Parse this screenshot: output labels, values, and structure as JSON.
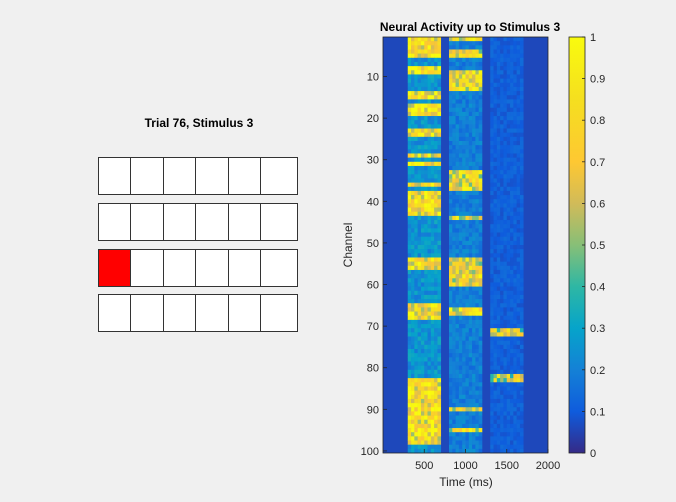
{
  "left_panel": {
    "title": "Trial 76, Stimulus 3",
    "rows": [
      [
        false,
        false,
        false,
        false,
        false,
        false
      ],
      [
        false,
        false,
        false,
        false,
        false,
        false
      ],
      [
        true,
        false,
        false,
        false,
        false,
        false
      ],
      [
        false,
        false,
        false,
        false,
        false,
        false
      ]
    ],
    "active_color": "#ff0000"
  },
  "chart_data": {
    "type": "heatmap",
    "title": "Neural Activity up to Stimulus 3",
    "xlabel": "Time (ms)",
    "ylabel": "Channel",
    "xlim": [
      0,
      2000
    ],
    "ylim": [
      1,
      100
    ],
    "y_reversed": true,
    "xticks": [
      500,
      1000,
      1500,
      2000
    ],
    "yticks": [
      10,
      20,
      30,
      40,
      50,
      60,
      70,
      80,
      90,
      100
    ],
    "colormap": "parula",
    "clim": [
      0,
      1
    ],
    "colorbar_ticks": [
      0,
      0.1,
      0.2,
      0.3,
      0.4,
      0.5,
      0.6,
      0.7,
      0.8,
      0.9,
      1
    ],
    "stimulus_windows_ms": [
      {
        "stimulus": 1,
        "start": 300,
        "end": 700,
        "mean_activity": 0.32
      },
      {
        "stimulus": 2,
        "start": 800,
        "end": 1200,
        "mean_activity": 0.24
      },
      {
        "stimulus": 3,
        "start": 1300,
        "end": 1700,
        "mean_activity": 0.14
      }
    ],
    "high_activity_channels": {
      "stimulus_1": [
        1,
        2,
        3,
        4,
        5,
        8,
        9,
        14,
        15,
        17,
        18,
        19,
        23,
        24,
        29,
        31,
        36,
        38,
        39,
        40,
        41,
        42,
        43,
        54,
        55,
        56,
        65,
        66,
        67,
        68,
        83,
        84,
        85,
        86,
        87,
        88,
        89,
        90,
        91,
        92,
        93,
        94,
        95,
        96,
        97,
        98
      ],
      "stimulus_2": [
        1,
        4,
        5,
        9,
        10,
        11,
        12,
        13,
        33,
        34,
        35,
        36,
        37,
        44,
        54,
        55,
        56,
        57,
        58,
        59,
        60,
        66,
        67,
        90,
        95
      ],
      "stimulus_3": [
        71,
        72,
        82,
        83
      ]
    }
  }
}
